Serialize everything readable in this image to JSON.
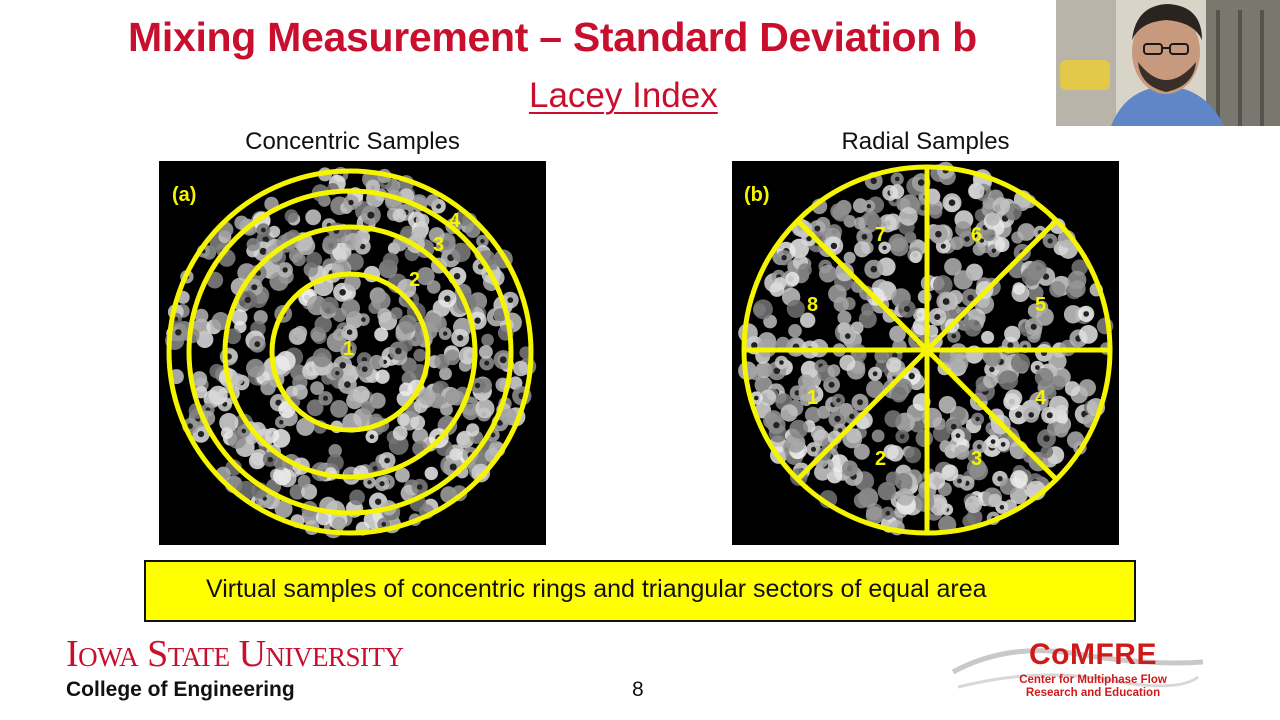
{
  "slide": {
    "title": "Mixing Measurement – Standard Deviation b",
    "subtitle": "Lacey Index",
    "page_number": "8",
    "caption": "Virtual samples of concentric rings and triangular sectors of equal area"
  },
  "panels": {
    "concentric": {
      "heading": "Concentric Samples",
      "tag": "(a)",
      "ring_labels": [
        "1",
        "2",
        "3",
        "4"
      ]
    },
    "radial": {
      "heading": "Radial Samples",
      "tag": "(b)",
      "sector_labels": [
        "1",
        "2",
        "3",
        "4",
        "5",
        "6",
        "7",
        "8"
      ]
    }
  },
  "footer": {
    "university": "Iowa State University",
    "college": "College of Engineering",
    "center_logo": {
      "name": "CoMFRE",
      "line1": "Center for Multiphase Flow",
      "line2": "Research and Education"
    }
  },
  "colors": {
    "brand_red": "#c8102e",
    "highlight_yellow": "#ffff00",
    "overlay_yellow": "#f5f500"
  },
  "webcam": {
    "icon": "person-silhouette"
  }
}
